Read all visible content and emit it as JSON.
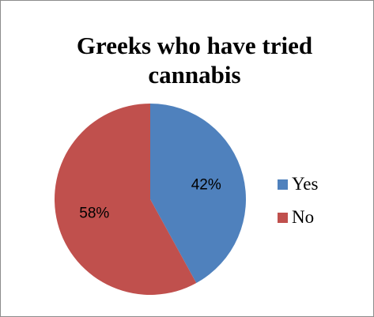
{
  "chart_data": {
    "type": "pie",
    "title": "Greeks who have tried cannabis",
    "categories": [
      "Yes",
      "No"
    ],
    "values": [
      42,
      58
    ],
    "value_labels": [
      "42%",
      "58%"
    ],
    "colors": [
      "#4f81bd",
      "#c0504d"
    ],
    "legend_position": "right",
    "start_angle_deg": 0,
    "direction": "clockwise"
  }
}
